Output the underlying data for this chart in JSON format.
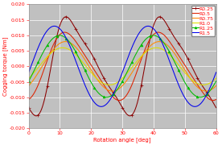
{
  "title": "",
  "xlabel": "Rotation angle [deg]",
  "ylabel": "Cogging torque [Nm]",
  "xlim": [
    0,
    60
  ],
  "ylim": [
    -0.02,
    0.02
  ],
  "xticks": [
    0,
    10,
    20,
    30,
    40,
    50,
    60
  ],
  "yticks": [
    -0.02,
    -0.015,
    -0.01,
    -0.005,
    0.0,
    0.005,
    0.01,
    0.015,
    0.02
  ],
  "background_color": "#c0c0c0",
  "grid_color": "#ffffff",
  "legend_fontsize": 4.5,
  "axis_fontsize": 5,
  "tick_fontsize": 4.5,
  "linewidth": 0.75
}
